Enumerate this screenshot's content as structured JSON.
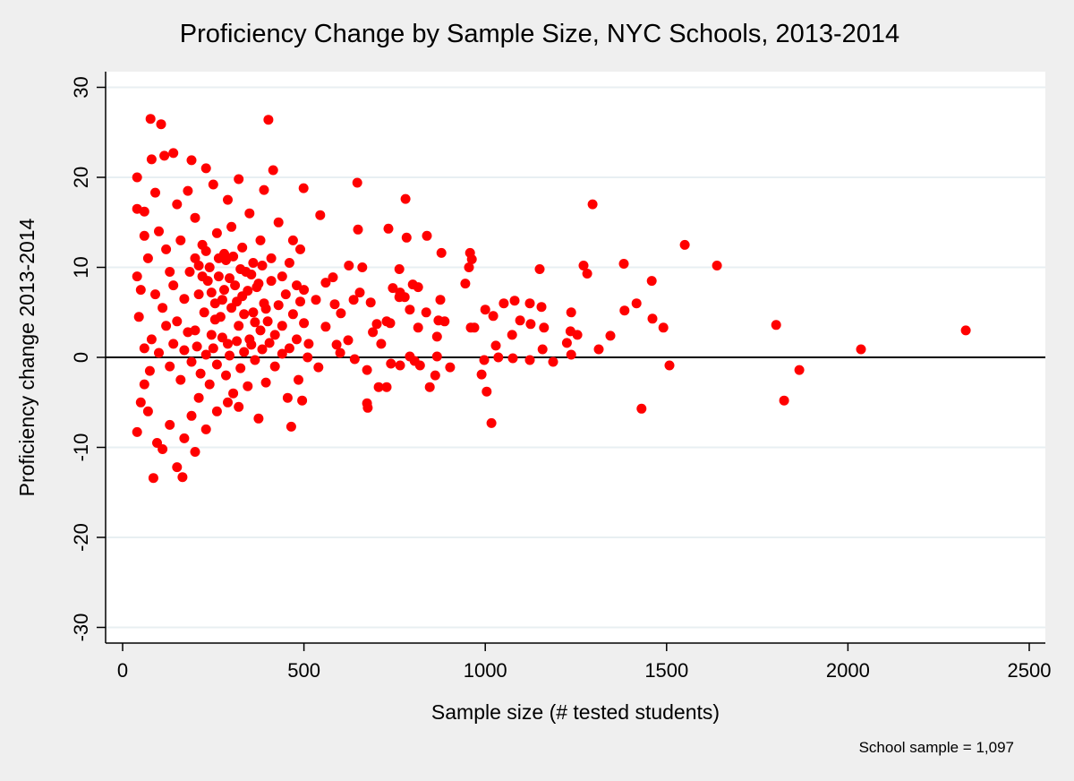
{
  "chart_data": {
    "type": "scatter",
    "title": "Proficiency Change by Sample Size, NYC Schools, 2013-2014",
    "xlabel": "Sample size (# tested students)",
    "ylabel": "Proficiency change 2013-2014",
    "note": "School sample = 1,097",
    "xlim": [
      -50,
      2550
    ],
    "ylim": [
      -32,
      32
    ],
    "xticks": [
      0,
      500,
      1000,
      1500,
      2000,
      2500
    ],
    "xtick_labels": [
      "0",
      "500",
      "1000",
      "1500",
      "2000",
      "2500"
    ],
    "yticks": [
      -30,
      -20,
      -10,
      0,
      10,
      20,
      30
    ],
    "ytick_labels": [
      "-30",
      "-20",
      "-10",
      "0",
      "10",
      "20",
      "30"
    ],
    "grid": true,
    "reference_line_y": 0,
    "colors": {
      "marker": "#ff0000",
      "background": "#efefef",
      "plot_background": "#ffffff",
      "grid": "#e8eff2"
    },
    "points": [
      [
        1296,
        17.0
      ],
      [
        1639,
        10.2
      ],
      [
        1550,
        12.5
      ],
      [
        1382,
        10.4
      ],
      [
        1384,
        5.2
      ],
      [
        1417,
        6.0
      ],
      [
        1459,
        8.5
      ],
      [
        1461,
        4.3
      ],
      [
        1491,
        3.3
      ],
      [
        1508,
        -0.9
      ],
      [
        1802,
        3.6
      ],
      [
        1824,
        -4.8
      ],
      [
        1866,
        -1.4
      ],
      [
        2036,
        0.9
      ],
      [
        2325,
        3.0
      ],
      [
        1431,
        -5.7
      ],
      [
        1345,
        2.4
      ],
      [
        1313,
        0.9
      ],
      [
        1271,
        10.2
      ],
      [
        1281,
        9.3
      ],
      [
        1237,
        5.0
      ],
      [
        1235,
        2.9
      ],
      [
        1225,
        1.6
      ],
      [
        1237,
        0.3
      ],
      [
        1254,
        2.5
      ],
      [
        1187,
        -0.5
      ],
      [
        1150,
        9.8
      ],
      [
        1155,
        5.6
      ],
      [
        1162,
        3.3
      ],
      [
        1158,
        0.9
      ],
      [
        1125,
        3.7
      ],
      [
        1123,
        6.0
      ],
      [
        1123,
        -0.3
      ],
      [
        1081,
        6.3
      ],
      [
        1096,
        4.1
      ],
      [
        1074,
        2.5
      ],
      [
        1076,
        -0.1
      ],
      [
        1051,
        6.0
      ],
      [
        1022,
        4.6
      ],
      [
        1029,
        1.3
      ],
      [
        1036,
        0
      ],
      [
        1017,
        -7.3
      ],
      [
        997,
        -0.3
      ],
      [
        1004,
        -3.8
      ],
      [
        990,
        -1.9
      ],
      [
        1000,
        5.3
      ],
      [
        958,
        11.6
      ],
      [
        955,
        10.0
      ],
      [
        963,
        10.9
      ],
      [
        945,
        8.2
      ],
      [
        970,
        3.3
      ],
      [
        960,
        3.3
      ],
      [
        903,
        -1.1
      ],
      [
        888,
        4.0
      ],
      [
        876,
        6.4
      ],
      [
        871,
        4.1
      ],
      [
        867,
        2.3
      ],
      [
        867,
        0.1
      ],
      [
        879,
        11.6
      ],
      [
        862,
        -2.0
      ],
      [
        847,
        -3.3
      ],
      [
        837,
        5.0
      ],
      [
        839,
        13.5
      ],
      [
        783,
        13.3
      ],
      [
        780,
        17.6
      ],
      [
        763,
        9.8
      ],
      [
        765,
        7.2
      ],
      [
        778,
        6.7
      ],
      [
        815,
        7.8
      ],
      [
        800,
        8.1
      ],
      [
        792,
        5.3
      ],
      [
        815,
        3.3
      ],
      [
        805,
        -0.4
      ],
      [
        820,
        -0.9
      ],
      [
        792,
        0.1
      ],
      [
        765,
        -0.9
      ],
      [
        738,
        3.8
      ],
      [
        728,
        4.0
      ],
      [
        740,
        -0.7
      ],
      [
        706,
        -3.3
      ],
      [
        728,
        -3.3
      ],
      [
        713,
        1.5
      ],
      [
        701,
        3.7
      ],
      [
        674,
        -1.4
      ],
      [
        674,
        -5.1
      ],
      [
        676,
        -5.6
      ],
      [
        733,
        14.3
      ],
      [
        745,
        7.7
      ],
      [
        763,
        6.7
      ],
      [
        647,
        19.4
      ],
      [
        661,
        10.0
      ],
      [
        654,
        7.2
      ],
      [
        649,
        14.2
      ],
      [
        684,
        6.1
      ],
      [
        624,
        10.2
      ],
      [
        637,
        6.4
      ],
      [
        602,
        4.9
      ],
      [
        622,
        1.9
      ],
      [
        585,
        5.9
      ],
      [
        590,
        1.4
      ],
      [
        580,
        8.9
      ],
      [
        545,
        15.8
      ],
      [
        533,
        6.4
      ],
      [
        560,
        3.4
      ],
      [
        513,
        1.5
      ],
      [
        540,
        -1.1
      ],
      [
        600,
        0.5
      ],
      [
        640,
        -0.2
      ],
      [
        690,
        2.8
      ],
      [
        560,
        8.3
      ],
      [
        77,
        26.5
      ],
      [
        106,
        25.9
      ],
      [
        402,
        26.4
      ],
      [
        415,
        20.8
      ],
      [
        499,
        18.8
      ],
      [
        40,
        20.0
      ],
      [
        40,
        16.5
      ],
      [
        80,
        22.0
      ],
      [
        115,
        22.4
      ],
      [
        140,
        22.7
      ],
      [
        190,
        21.9
      ],
      [
        230,
        21.0
      ],
      [
        320,
        19.8
      ],
      [
        390,
        18.6
      ],
      [
        60,
        13.5
      ],
      [
        60,
        16.2
      ],
      [
        90,
        18.3
      ],
      [
        150,
        17.0
      ],
      [
        180,
        18.5
      ],
      [
        250,
        19.2
      ],
      [
        290,
        17.5
      ],
      [
        350,
        16.0
      ],
      [
        430,
        15.0
      ],
      [
        470,
        13.0
      ],
      [
        490,
        12.0
      ],
      [
        40,
        9.0
      ],
      [
        45,
        4.5
      ],
      [
        50,
        7.5
      ],
      [
        70,
        11.0
      ],
      [
        100,
        14.0
      ],
      [
        120,
        12.0
      ],
      [
        130,
        9.5
      ],
      [
        160,
        13.0
      ],
      [
        200,
        15.5
      ],
      [
        220,
        12.5
      ],
      [
        240,
        10.0
      ],
      [
        260,
        13.8
      ],
      [
        280,
        11.5
      ],
      [
        300,
        14.5
      ],
      [
        330,
        12.2
      ],
      [
        360,
        10.5
      ],
      [
        380,
        13.0
      ],
      [
        410,
        11.0
      ],
      [
        440,
        9.0
      ],
      [
        460,
        10.5
      ],
      [
        480,
        8.0
      ],
      [
        500,
        7.5
      ],
      [
        90,
        7.0
      ],
      [
        110,
        5.5
      ],
      [
        140,
        8.0
      ],
      [
        150,
        4.0
      ],
      [
        170,
        6.5
      ],
      [
        185,
        9.5
      ],
      [
        200,
        3.0
      ],
      [
        210,
        7.0
      ],
      [
        225,
        5.0
      ],
      [
        235,
        8.5
      ],
      [
        245,
        2.5
      ],
      [
        255,
        6.0
      ],
      [
        265,
        9.0
      ],
      [
        270,
        4.5
      ],
      [
        280,
        7.5
      ],
      [
        290,
        1.5
      ],
      [
        300,
        5.5
      ],
      [
        310,
        8.0
      ],
      [
        320,
        3.5
      ],
      [
        330,
        6.8
      ],
      [
        340,
        9.5
      ],
      [
        350,
        2.0
      ],
      [
        360,
        5.0
      ],
      [
        370,
        7.8
      ],
      [
        380,
        3.0
      ],
      [
        390,
        6.0
      ],
      [
        400,
        4.0
      ],
      [
        410,
        8.5
      ],
      [
        420,
        2.5
      ],
      [
        430,
        5.8
      ],
      [
        440,
        3.5
      ],
      [
        450,
        7.0
      ],
      [
        460,
        1.0
      ],
      [
        470,
        4.8
      ],
      [
        480,
        2.0
      ],
      [
        490,
        6.2
      ],
      [
        500,
        3.8
      ],
      [
        80,
        2.0
      ],
      [
        100,
        0.5
      ],
      [
        120,
        3.5
      ],
      [
        130,
        -1.0
      ],
      [
        140,
        1.5
      ],
      [
        160,
        -2.5
      ],
      [
        170,
        0.8
      ],
      [
        180,
        2.8
      ],
      [
        190,
        -0.5
      ],
      [
        205,
        1.2
      ],
      [
        215,
        -1.8
      ],
      [
        230,
        0.3
      ],
      [
        240,
        -3.0
      ],
      [
        250,
        1.0
      ],
      [
        260,
        -0.8
      ],
      [
        275,
        2.2
      ],
      [
        285,
        -2.0
      ],
      [
        295,
        0.2
      ],
      [
        305,
        -4.0
      ],
      [
        315,
        1.8
      ],
      [
        325,
        -1.2
      ],
      [
        335,
        0.6
      ],
      [
        345,
        -3.2
      ],
      [
        355,
        1.4
      ],
      [
        365,
        -0.3
      ],
      [
        375,
        -6.8
      ],
      [
        385,
        0.9
      ],
      [
        395,
        -2.8
      ],
      [
        405,
        1.6
      ],
      [
        420,
        -1.0
      ],
      [
        440,
        0.4
      ],
      [
        455,
        -4.5
      ],
      [
        465,
        -7.7
      ],
      [
        485,
        -2.5
      ],
      [
        495,
        -4.8
      ],
      [
        510,
        0.0
      ],
      [
        40,
        -8.3
      ],
      [
        50,
        -5.0
      ],
      [
        60,
        -3.0
      ],
      [
        70,
        -6.0
      ],
      [
        85,
        -13.4
      ],
      [
        95,
        -9.5
      ],
      [
        110,
        -10.2
      ],
      [
        130,
        -7.5
      ],
      [
        150,
        -12.2
      ],
      [
        165,
        -13.3
      ],
      [
        170,
        -9.0
      ],
      [
        190,
        -6.5
      ],
      [
        200,
        -10.5
      ],
      [
        210,
        -4.5
      ],
      [
        230,
        -8.0
      ],
      [
        260,
        -6.0
      ],
      [
        290,
        -5.0
      ],
      [
        320,
        -5.5
      ],
      [
        60,
        1.0
      ],
      [
        75,
        -1.5
      ],
      [
        200,
        11.0
      ],
      [
        210,
        10.2
      ],
      [
        220,
        9.0
      ],
      [
        230,
        11.8
      ],
      [
        245,
        7.2
      ],
      [
        255,
        4.2
      ],
      [
        265,
        11.0
      ],
      [
        275,
        6.4
      ],
      [
        285,
        10.8
      ],
      [
        295,
        8.8
      ],
      [
        305,
        11.2
      ],
      [
        315,
        6.2
      ],
      [
        325,
        9.8
      ],
      [
        335,
        4.8
      ],
      [
        345,
        7.4
      ],
      [
        355,
        9.2
      ],
      [
        365,
        3.9
      ],
      [
        375,
        8.2
      ],
      [
        385,
        10.2
      ],
      [
        395,
        5.4
      ]
    ]
  }
}
